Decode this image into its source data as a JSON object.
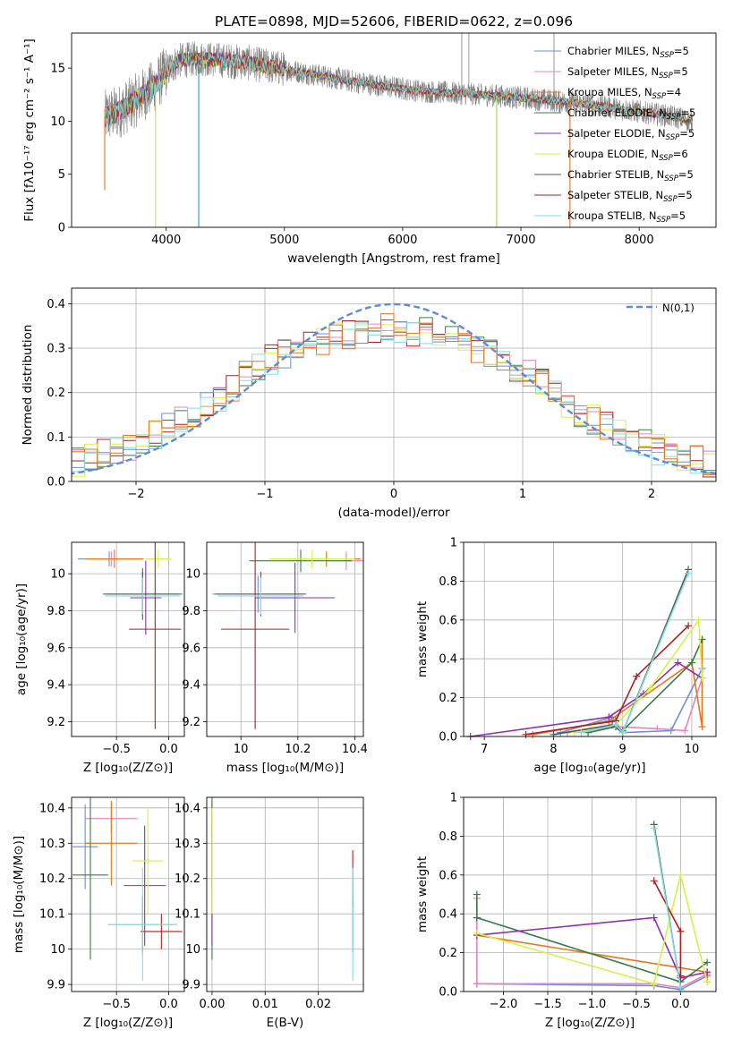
{
  "chart_data": [
    {
      "id": "spectrum",
      "type": "line",
      "title": "PLATE=0898, MJD=52606, FIBERID=0622, z=0.096",
      "xlabel": "wavelength [Angstrom, rest frame]",
      "ylabel": "Flux [fλ10⁻¹⁷ erg cm⁻² s⁻¹ A⁻¹]",
      "xlim": [
        3200,
        8650
      ],
      "ylim": [
        0,
        18.3
      ],
      "xticks": [
        4000,
        5000,
        6000,
        7000,
        8000
      ],
      "yticks": [
        0,
        5,
        10,
        15
      ],
      "grid": false,
      "legend_position": "top-right",
      "data_color": "#7f7f7f",
      "data_continuum": {
        "x": [
          3480,
          3600,
          3750,
          3900,
          4000,
          4100,
          4300,
          4500,
          4700,
          5000,
          5300,
          5600,
          5900,
          6200,
          6500,
          6800,
          7100,
          7400,
          7700,
          8000,
          8300,
          8450
        ],
        "y": [
          10.4,
          10.9,
          12.0,
          13.3,
          14.6,
          15.7,
          15.9,
          15.7,
          15.5,
          14.9,
          14.3,
          13.7,
          13.2,
          12.8,
          12.6,
          12.4,
          12.1,
          11.8,
          11.4,
          10.9,
          10.4,
          10.0
        ]
      },
      "model_dips": [
        {
          "x": 3480,
          "y": 3.5,
          "color": "#e8741c"
        },
        {
          "x": 3910,
          "y": 0.0,
          "color": "#d4e157"
        },
        {
          "x": 4275,
          "y": 0.0,
          "color": "#26a69a"
        },
        {
          "x": 6795,
          "y": 0.0,
          "color": "#a5d64a"
        },
        {
          "x": 7415,
          "y": 0.0,
          "color": "#e8741c"
        }
      ],
      "data_spikes": [
        {
          "x": 6500,
          "y": 18.3
        },
        {
          "x": 6560,
          "y": 18.3
        },
        {
          "x": 7280,
          "y": 18.3
        }
      ],
      "series": [
        {
          "name": "Chabrier MILES, N",
          "sub": "SSP",
          "n": "=5",
          "color": "#6b8fd6"
        },
        {
          "name": "Salpeter MILES, N",
          "sub": "SSP",
          "n": "=5",
          "color": "#e784b9"
        },
        {
          "name": "Kroupa MILES, N",
          "sub": "SSP",
          "n": "=4",
          "color": "#e8741c"
        },
        {
          "name": "Chabrier ELODIE, N",
          "sub": "SSP",
          "n": "=5",
          "color": "#3a7d44"
        },
        {
          "name": "Salpeter ELODIE, N",
          "sub": "SSP",
          "n": "=5",
          "color": "#8e2fb0"
        },
        {
          "name": "Kroupa ELODIE, N",
          "sub": "SSP",
          "n": "=6",
          "color": "#d8ef4a"
        },
        {
          "name": "Chabrier STELIB, N",
          "sub": "SSP",
          "n": "=5",
          "color": "#555555"
        },
        {
          "name": "Salpeter STELIB, N",
          "sub": "SSP",
          "n": "=5",
          "color": "#b21f1f"
        },
        {
          "name": "Kroupa STELIB, N",
          "sub": "SSP",
          "n": "=5",
          "color": "#7fdde0"
        }
      ]
    },
    {
      "id": "residuals",
      "type": "line",
      "xlabel": "(data-model)/error",
      "ylabel": "Normed distribution",
      "xlim": [
        -2.5,
        2.5
      ],
      "ylim": [
        0,
        0.435
      ],
      "xticks": [
        -2,
        -1,
        0,
        1,
        2
      ],
      "yticks": [
        0.0,
        0.1,
        0.2,
        0.3,
        0.4
      ],
      "grid": true,
      "legend_position": "top-right",
      "reference": {
        "name": "N(0,1)",
        "mean": 0,
        "sigma": 1,
        "color": "#5b8bd9"
      },
      "histogram_envelope": {
        "x": [
          -2.5,
          -2.0,
          -1.5,
          -1.0,
          -0.5,
          0.0,
          0.5,
          1.0,
          1.5,
          2.0,
          2.5
        ],
        "y": [
          0.035,
          0.085,
          0.16,
          0.27,
          0.325,
          0.345,
          0.325,
          0.25,
          0.145,
          0.075,
          0.035
        ]
      },
      "histogram_colors": [
        "#3a7d44",
        "#e784b9",
        "#b21f1f",
        "#6b8fd6",
        "#d8ef4a",
        "#7fdde0",
        "#e8741c"
      ]
    },
    {
      "id": "age_vs_Z",
      "type": "scatter",
      "xlabel": "Z [log₁₀(Z/Z⊙)]",
      "ylabel": "age  [log₁₀(age/yr)]",
      "xlim": [
        -0.93,
        0.15
      ],
      "ylim": [
        9.12,
        10.17
      ],
      "xticks": [
        -0.5,
        0.0
      ],
      "yticks": [
        9.2,
        9.4,
        9.6,
        9.8,
        10.0
      ],
      "grid": true,
      "points": [
        {
          "x": -0.57,
          "y": 10.08,
          "xerr": 0.3,
          "yerr": 0.04,
          "color": "#6b8fd6"
        },
        {
          "x": -0.55,
          "y": 10.08,
          "xerr": 0.25,
          "yerr": 0.04,
          "color": "#e784b9"
        },
        {
          "x": -0.52,
          "y": 10.08,
          "xerr": 0.28,
          "yerr": 0.05,
          "color": "#e8741c"
        },
        {
          "x": -0.25,
          "y": 9.89,
          "xerr": 0.35,
          "yerr": 0.14,
          "color": "#3a7d44"
        },
        {
          "x": -0.22,
          "y": 9.87,
          "xerr": 0.15,
          "yerr": 0.2,
          "color": "#8e2fb0"
        },
        {
          "x": -0.1,
          "y": 10.08,
          "xerr": 0.12,
          "yerr": 0.05,
          "color": "#d8ef4a"
        },
        {
          "x": -0.25,
          "y": 9.89,
          "xerr": 0.38,
          "yerr": 0.12,
          "color": "#555555"
        },
        {
          "x": -0.13,
          "y": 9.7,
          "xerr": 0.25,
          "yerr": 0.54,
          "color": "#b21f1f"
        },
        {
          "x": -0.25,
          "y": 9.88,
          "xerr": 0.36,
          "yerr": 0.1,
          "color": "#7fdde0"
        }
      ]
    },
    {
      "id": "age_vs_mass",
      "type": "scatter",
      "xlabel": "mass [log₁₀(M/M⊙)]",
      "ylabel": "",
      "xlim": [
        9.88,
        10.43
      ],
      "ylim": [
        9.12,
        10.17
      ],
      "xticks": [
        10.0,
        10.2,
        10.4
      ],
      "yticks": [
        9.2,
        9.4,
        9.6,
        9.8,
        10.0
      ],
      "grid": true,
      "points": [
        {
          "x": 10.06,
          "y": 9.89,
          "xerr": 0.16,
          "yerr": 0.1,
          "color": "#6b8fd6"
        },
        {
          "x": 10.37,
          "y": 10.07,
          "xerr": 0.07,
          "yerr": 0.05,
          "color": "#e784b9"
        },
        {
          "x": 10.3,
          "y": 10.08,
          "xerr": 0.12,
          "yerr": 0.04,
          "color": "#e8741c"
        },
        {
          "x": 10.21,
          "y": 10.07,
          "xerr": 0.18,
          "yerr": 0.06,
          "color": "#3a7d44"
        },
        {
          "x": 10.19,
          "y": 9.87,
          "xerr": 0.14,
          "yerr": 0.19,
          "color": "#8e2fb0"
        },
        {
          "x": 10.25,
          "y": 10.08,
          "xerr": 0.15,
          "yerr": 0.05,
          "color": "#d8ef4a"
        },
        {
          "x": 10.07,
          "y": 9.89,
          "xerr": 0.16,
          "yerr": 0.12,
          "color": "#555555"
        },
        {
          "x": 10.05,
          "y": 9.7,
          "xerr": 0.12,
          "yerr": 0.54,
          "color": "#b21f1f"
        },
        {
          "x": 10.07,
          "y": 9.88,
          "xerr": 0.15,
          "yerr": 0.1,
          "color": "#7fdde0"
        }
      ]
    },
    {
      "id": "massweight_vs_age",
      "type": "line",
      "xlabel": "age  [log₁₀(age/yr)]",
      "ylabel": "mass weight",
      "xlim": [
        6.7,
        10.35
      ],
      "ylim": [
        0,
        1.0
      ],
      "xticks": [
        7,
        8,
        9,
        10
      ],
      "yticks": [
        0.0,
        0.2,
        0.4,
        0.6,
        0.8,
        1.0
      ],
      "grid": true,
      "series": [
        {
          "color": "#6b8fd6",
          "points": [
            [
              8.1,
              0.02
            ],
            [
              8.85,
              0.1
            ],
            [
              9.0,
              0.02
            ],
            [
              9.7,
              0.03
            ],
            [
              10.15,
              0.35
            ]
          ]
        },
        {
          "color": "#e784b9",
          "points": [
            [
              8.2,
              0.02
            ],
            [
              8.9,
              0.05
            ],
            [
              9.5,
              0.04
            ],
            [
              9.9,
              0.03
            ],
            [
              10.15,
              0.3
            ]
          ]
        },
        {
          "color": "#e8741c",
          "points": [
            [
              7.7,
              0.01
            ],
            [
              8.8,
              0.08
            ],
            [
              10.0,
              0.38
            ],
            [
              10.15,
              0.05
            ],
            [
              10.15,
              0.5
            ]
          ]
        },
        {
          "color": "#3a7d44",
          "points": [
            [
              8.5,
              0.02
            ],
            [
              8.9,
              0.05
            ],
            [
              9.0,
              0.03
            ],
            [
              10.0,
              0.38
            ],
            [
              10.15,
              0.5
            ]
          ]
        },
        {
          "color": "#8e2fb0",
          "points": [
            [
              6.8,
              0.0
            ],
            [
              8.8,
              0.1
            ],
            [
              9.3,
              0.22
            ],
            [
              9.8,
              0.38
            ],
            [
              10.15,
              0.3
            ]
          ]
        },
        {
          "color": "#d8ef4a",
          "points": [
            [
              8.3,
              0.02
            ],
            [
              8.9,
              0.06
            ],
            [
              9.4,
              0.25
            ],
            [
              10.1,
              0.6
            ],
            [
              10.15,
              0.3
            ]
          ]
        },
        {
          "color": "#555555",
          "points": [
            [
              8.0,
              0.01
            ],
            [
              8.85,
              0.06
            ],
            [
              9.0,
              0.02
            ],
            [
              9.95,
              0.86
            ]
          ]
        },
        {
          "color": "#b21f1f",
          "points": [
            [
              7.6,
              0.01
            ],
            [
              8.9,
              0.08
            ],
            [
              9.2,
              0.31
            ],
            [
              9.95,
              0.57
            ]
          ]
        },
        {
          "color": "#7fdde0",
          "points": [
            [
              8.4,
              0.02
            ],
            [
              8.9,
              0.06
            ],
            [
              9.0,
              0.02
            ],
            [
              9.95,
              0.84
            ]
          ]
        }
      ]
    },
    {
      "id": "mass_vs_Z",
      "type": "scatter",
      "xlabel": "Z [log₁₀(Z/Z⊙)]",
      "ylabel": "mass [log₁₀(M/M⊙)]",
      "xlim": [
        -0.93,
        0.15
      ],
      "ylim": [
        9.88,
        10.43
      ],
      "xticks": [
        -0.5,
        0.0
      ],
      "yticks": [
        9.9,
        10.0,
        10.1,
        10.2,
        10.3,
        10.4
      ],
      "grid": true,
      "points": [
        {
          "x": -0.8,
          "y": 10.29,
          "xerr": 0.12,
          "yerr": 0.12,
          "color": "#6b8fd6"
        },
        {
          "x": -0.55,
          "y": 10.37,
          "xerr": 0.25,
          "yerr": 0.04,
          "color": "#e784b9"
        },
        {
          "x": -0.55,
          "y": 10.3,
          "xerr": 0.25,
          "yerr": 0.12,
          "color": "#e8741c"
        },
        {
          "x": -0.75,
          "y": 10.21,
          "xerr": 0.17,
          "yerr": 0.24,
          "color": "#3a7d44"
        },
        {
          "x": -0.23,
          "y": 10.18,
          "xerr": 0.2,
          "yerr": 0.17,
          "color": "#8e2fb0"
        },
        {
          "x": -0.2,
          "y": 10.25,
          "xerr": 0.15,
          "yerr": 0.15,
          "color": "#d8ef4a"
        },
        {
          "x": -0.25,
          "y": 10.07,
          "xerr": 0.33,
          "yerr": 0.08,
          "color": "#555555"
        },
        {
          "x": -0.07,
          "y": 10.05,
          "xerr": 0.2,
          "yerr": 0.05,
          "color": "#b21f1f"
        },
        {
          "x": -0.25,
          "y": 10.07,
          "xerr": 0.33,
          "yerr": 0.16,
          "color": "#7fdde0"
        }
      ]
    },
    {
      "id": "mass_vs_EBV",
      "type": "scatter",
      "xlabel": "E(B-V)",
      "ylabel": "",
      "xlim": [
        -0.001,
        0.0285
      ],
      "ylim": [
        9.88,
        10.43
      ],
      "xticks": [
        0.0,
        0.01,
        0.02
      ],
      "xticklabels": [
        "0.00",
        "0.01",
        "0.02"
      ],
      "yticks": [
        9.9,
        10.0,
        10.1,
        10.2,
        10.3,
        10.4
      ],
      "grid": true,
      "points": [
        {
          "x": 0.0,
          "y": 10.29,
          "yerr": 0.12,
          "color": "#6b8fd6"
        },
        {
          "x": 0.0,
          "y": 10.37,
          "yerr": 0.04,
          "color": "#e784b9"
        },
        {
          "x": 0.0,
          "y": 10.3,
          "yerr": 0.12,
          "color": "#e8741c"
        },
        {
          "x": 0.0,
          "y": 10.21,
          "yerr": 0.24,
          "color": "#3a7d44"
        },
        {
          "x": 0.0,
          "y": 10.18,
          "yerr": 0.17,
          "color": "#8e2fb0"
        },
        {
          "x": 0.0,
          "y": 10.25,
          "yerr": 0.15,
          "color": "#d8ef4a"
        },
        {
          "x": 0.0265,
          "y": 10.07,
          "yerr": 0.08,
          "color": "#555555"
        },
        {
          "x": 0.0265,
          "y": 10.2,
          "yerr": 0.08,
          "color": "#b21f1f"
        },
        {
          "x": 0.0265,
          "y": 10.07,
          "yerr": 0.16,
          "color": "#7fdde0"
        }
      ]
    },
    {
      "id": "massweight_vs_Z",
      "type": "line",
      "xlabel": "Z [log₁₀(Z/Z⊙)]",
      "ylabel": "mass weight",
      "xlim": [
        -2.45,
        0.4
      ],
      "ylim": [
        0,
        1.0
      ],
      "xticks": [
        -2.0,
        -1.5,
        -1.0,
        -0.5,
        0.0
      ],
      "xticklabels": [
        "−2.0",
        "−1.5",
        "−1.0",
        "−0.5",
        "0.0"
      ],
      "yticks": [
        0.0,
        0.2,
        0.4,
        0.6,
        0.8,
        1.0
      ],
      "grid": true,
      "series": [
        {
          "color": "#6b8fd6",
          "points": [
            [
              -2.3,
              0.04
            ],
            [
              -0.3,
              0.03
            ],
            [
              0.0,
              0.01
            ],
            [
              0.3,
              0.08
            ]
          ]
        },
        {
          "color": "#e784b9",
          "points": [
            [
              -2.3,
              0.04
            ],
            [
              -2.3,
              0.48
            ],
            [
              -2.3,
              0.04
            ],
            [
              -0.3,
              0.04
            ],
            [
              0.0,
              0.02
            ],
            [
              0.3,
              0.09
            ]
          ]
        },
        {
          "color": "#e8741c",
          "points": [
            [
              -2.3,
              0.29
            ],
            [
              0.3,
              0.1
            ],
            [
              0.3,
              0.05
            ]
          ]
        },
        {
          "color": "#3a7d44",
          "points": [
            [
              -2.3,
              0.38
            ],
            [
              -2.3,
              0.5
            ],
            [
              -2.3,
              0.38
            ],
            [
              0.0,
              0.05
            ],
            [
              0.3,
              0.15
            ]
          ]
        },
        {
          "color": "#8e2fb0",
          "points": [
            [
              -2.3,
              0.29
            ],
            [
              -0.3,
              0.38
            ],
            [
              0.0,
              0.07
            ],
            [
              0.3,
              0.1
            ]
          ]
        },
        {
          "color": "#d8ef4a",
          "points": [
            [
              -2.3,
              0.3
            ],
            [
              -0.3,
              0.04
            ],
            [
              0.0,
              0.6
            ],
            [
              0.3,
              0.05
            ]
          ]
        },
        {
          "color": "#555555",
          "points": [
            [
              -0.3,
              0.86
            ],
            [
              0.0,
              0.02
            ]
          ]
        },
        {
          "color": "#b21f1f",
          "points": [
            [
              -0.3,
              0.57
            ],
            [
              0.0,
              0.31
            ],
            [
              0.0,
              0.08
            ]
          ]
        },
        {
          "color": "#7fdde0",
          "points": [
            [
              -0.3,
              0.84
            ],
            [
              0.0,
              0.02
            ]
          ]
        }
      ]
    }
  ]
}
